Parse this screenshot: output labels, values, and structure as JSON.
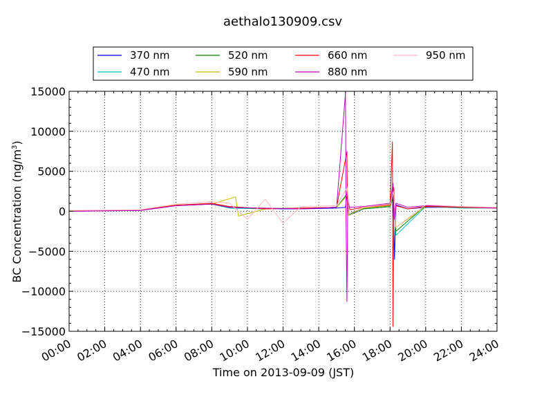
{
  "chart_data": {
    "type": "line",
    "title": "aethalo130909.csv",
    "xlabel": "Time on 2013-09-09 (JST)",
    "ylabel": "BC Concentration (ng/m",
    "ylabel_sup": "3",
    "ylabel_end": ")",
    "xlim": [
      "00:00",
      "24:00"
    ],
    "ylim": [
      -15000,
      15000
    ],
    "x_ticks": [
      "00:00",
      "02:00",
      "04:00",
      "06:00",
      "08:00",
      "10:00",
      "12:00",
      "14:00",
      "16:00",
      "18:00",
      "20:00",
      "22:00",
      "24:00"
    ],
    "y_ticks": [
      "15000",
      "10000",
      "5000",
      "0",
      "−5000",
      "−10000",
      "−15000"
    ],
    "grid": true,
    "legend_location": "top, outside plot",
    "series": [
      {
        "name": "370 nm",
        "color": "#0000ff",
        "x": [
          "00:00",
          "04:00",
          "06:00",
          "07:00",
          "08:00",
          "09:00",
          "11:00",
          "13:00",
          "15:00",
          "15:30",
          "15:36",
          "15:42",
          "16:30",
          "18:00",
          "18:10",
          "18:15",
          "18:20",
          "19:00",
          "20:00",
          "22:00",
          "24:00"
        ],
        "y": [
          0,
          100,
          700,
          800,
          900,
          500,
          300,
          300,
          400,
          500,
          2500,
          -500,
          300,
          600,
          2500,
          -6000,
          800,
          300,
          500,
          500,
          400
        ]
      },
      {
        "name": "470 nm",
        "color": "#00bfbf",
        "x": [
          "00:00",
          "04:00",
          "06:00",
          "08:00",
          "09:00",
          "11:00",
          "13:00",
          "15:00",
          "15:36",
          "15:42",
          "16:30",
          "18:00",
          "18:12",
          "18:20",
          "20:00",
          "22:00",
          "24:00"
        ],
        "y": [
          0,
          150,
          800,
          900,
          400,
          300,
          400,
          500,
          2000,
          -400,
          300,
          600,
          2000,
          -3000,
          600,
          400,
          400
        ]
      },
      {
        "name": "520 nm",
        "color": "#008000",
        "x": [
          "00:00",
          "04:00",
          "06:00",
          "08:00",
          "09:00",
          "11:00",
          "13:00",
          "15:00",
          "15:36",
          "15:42",
          "16:30",
          "18:00",
          "18:12",
          "18:20",
          "20:00",
          "22:00",
          "24:00"
        ],
        "y": [
          50,
          150,
          750,
          900,
          500,
          350,
          400,
          500,
          2200,
          -300,
          300,
          600,
          2000,
          -2500,
          700,
          500,
          450
        ]
      },
      {
        "name": "590 nm",
        "color": "#bfbf00",
        "x": [
          "00:00",
          "04:00",
          "06:00",
          "08:00",
          "09:20",
          "09:30",
          "11:00",
          "13:00",
          "15:00",
          "15:36",
          "15:42",
          "16:30",
          "18:00",
          "18:12",
          "18:20",
          "20:00",
          "22:00",
          "24:00"
        ],
        "y": [
          0,
          200,
          800,
          900,
          1800,
          -600,
          300,
          400,
          500,
          2000,
          -500,
          400,
          700,
          2500,
          -2000,
          600,
          500,
          400
        ]
      },
      {
        "name": "660 nm",
        "color": "#ff0000",
        "x": [
          "00:00",
          "04:00",
          "06:00",
          "08:00",
          "09:00",
          "11:00",
          "13:00",
          "15:00",
          "15:35",
          "15:37",
          "15:41",
          "15:45",
          "16:30",
          "18:00",
          "18:08",
          "18:10",
          "18:13",
          "18:16",
          "18:20",
          "19:00",
          "20:00",
          "22:00",
          "24:00"
        ],
        "y": [
          0,
          150,
          750,
          1000,
          600,
          300,
          400,
          500,
          7500,
          -500,
          1000,
          200,
          500,
          800,
          8700,
          -14400,
          3000,
          -1000,
          700,
          300,
          600,
          500,
          400
        ]
      },
      {
        "name": "880 nm",
        "color": "#bf00bf",
        "x": [
          "00:00",
          "04:00",
          "06:00",
          "08:00",
          "09:00",
          "11:00",
          "13:00",
          "15:00",
          "15:30",
          "15:32",
          "15:35",
          "15:38",
          "15:42",
          "16:30",
          "18:00",
          "18:10",
          "18:15",
          "18:20",
          "19:00",
          "20:00",
          "22:00",
          "24:00"
        ],
        "y": [
          0,
          100,
          700,
          900,
          500,
          400,
          300,
          500,
          14800,
          -1000,
          -11300,
          2000,
          500,
          600,
          1000,
          3500,
          -1000,
          1000,
          500,
          700,
          600,
          400
        ]
      },
      {
        "name": "950 nm",
        "color": "#ffb6c1",
        "x": [
          "00:00",
          "04:00",
          "06:00",
          "08:00",
          "09:00",
          "10:00",
          "11:00",
          "12:00",
          "13:00",
          "15:00",
          "15:36",
          "15:42",
          "16:30",
          "18:00",
          "18:12",
          "18:20",
          "20:00",
          "22:00",
          "24:00"
        ],
        "y": [
          100,
          200,
          900,
          1200,
          1000,
          -1000,
          1500,
          -1500,
          600,
          700,
          3000,
          -300,
          500,
          900,
          2500,
          -2000,
          800,
          600,
          500
        ]
      }
    ]
  }
}
